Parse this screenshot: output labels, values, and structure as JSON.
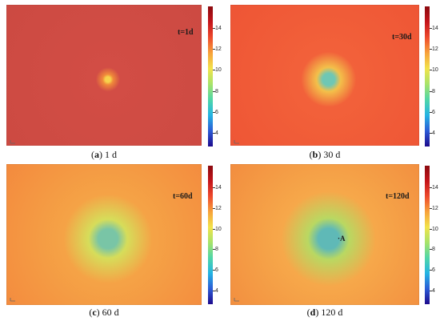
{
  "colorbar": {
    "ticks": [
      "14",
      "12",
      "10",
      "8",
      "6",
      "4"
    ],
    "colors": [
      "#1d0a8c",
      "#2b5bd6",
      "#24b3e3",
      "#4fd6a8",
      "#a7e36a",
      "#f2e34a",
      "#f7a23a",
      "#ee4a2c",
      "#c4141a",
      "#8c0a0f"
    ]
  },
  "panels": [
    {
      "time_label": "t=1d",
      "caption_tag": "a",
      "caption_text": "1 d",
      "field_color": "#d24d45",
      "field_edge_color": "#cc4a42",
      "center_color": "#f7d24c",
      "ring_color": "#f08a3a",
      "plume_radius": 0.06
    },
    {
      "time_label": "t=30d",
      "caption_tag": "b",
      "caption_text": "30 d",
      "field_color": "#f2613a",
      "field_edge_color": "#ee5535",
      "center_color": "#6fc7b4",
      "ring_color": "#f3c04a",
      "plume_radius": 0.14
    },
    {
      "time_label": "t=60d",
      "caption_tag": "c",
      "caption_text": "60 d",
      "field_color": "#f5a346",
      "field_edge_color": "#f38a3e",
      "center_color": "#79c5a6",
      "ring_color": "#d6dd5a",
      "plume_radius": 0.22
    },
    {
      "time_label": "t=120d",
      "caption_tag": "d",
      "caption_text": "120 d",
      "field_color": "#f6a84a",
      "field_edge_color": "#f28d3f",
      "center_color": "#5fb9b7",
      "ring_color": "#b9d862",
      "plume_radius": 0.24,
      "point_label": "·A"
    }
  ]
}
